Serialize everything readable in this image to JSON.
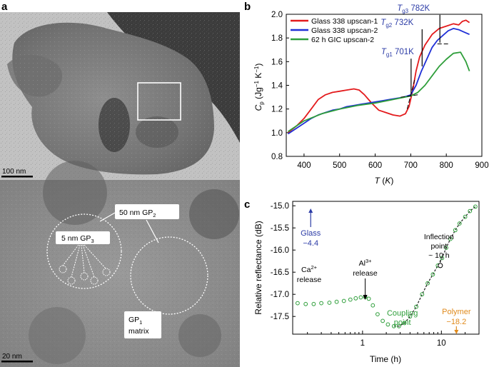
{
  "panels": {
    "a": "a",
    "b": "b",
    "c": "c"
  },
  "micrograph": {
    "scale_bar_top": "100 nm",
    "scale_bar_bottom": "20 nm",
    "label_gp2": "50 nm GP",
    "label_gp2_sub": "2",
    "label_gp3": "5 nm GP",
    "label_gp3_sub": "3",
    "label_gp1": "GP",
    "label_gp1_sub": "1",
    "label_matrix": "matrix"
  },
  "chart_data": [
    {
      "type": "line",
      "panel": "b",
      "xlabel": "T (K)",
      "ylabel": "Cp (Jg−1 K−1)",
      "xlim": [
        350,
        900
      ],
      "ylim": [
        0.8,
        2.0
      ],
      "xticks": [
        "400",
        "500",
        "600",
        "700",
        "800",
        "900"
      ],
      "yticks": [
        "0.8",
        "1.0",
        "1.2",
        "1.4",
        "1.6",
        "1.8",
        "2.0"
      ],
      "legend": [
        "Glass 338 upscan-1",
        "Glass 338 upscan-2",
        "62 h GIC upscan-2"
      ],
      "series": [
        {
          "name": "Glass 338 upscan-1",
          "color": "#e31a1c",
          "x": [
            355,
            380,
            400,
            420,
            440,
            460,
            480,
            500,
            520,
            540,
            555,
            570,
            590,
            610,
            630,
            650,
            670,
            685,
            695,
            705,
            715,
            725,
            740,
            760,
            780,
            800,
            820,
            835,
            845,
            855,
            865
          ],
          "y": [
            1.0,
            1.06,
            1.12,
            1.2,
            1.28,
            1.32,
            1.34,
            1.35,
            1.36,
            1.37,
            1.36,
            1.32,
            1.25,
            1.19,
            1.17,
            1.15,
            1.14,
            1.16,
            1.22,
            1.35,
            1.52,
            1.64,
            1.74,
            1.83,
            1.88,
            1.9,
            1.92,
            1.91,
            1.94,
            1.95,
            1.93
          ]
        },
        {
          "name": "Glass 338 upscan-2",
          "color": "#1f2fd6",
          "x": [
            355,
            380,
            400,
            420,
            440,
            460,
            480,
            500,
            520,
            540,
            560,
            580,
            600,
            620,
            640,
            660,
            680,
            700,
            715,
            730,
            745,
            760,
            775,
            790,
            805,
            820,
            835,
            850,
            865
          ],
          "y": [
            0.99,
            1.04,
            1.08,
            1.12,
            1.15,
            1.17,
            1.19,
            1.2,
            1.22,
            1.23,
            1.24,
            1.25,
            1.26,
            1.27,
            1.28,
            1.29,
            1.3,
            1.32,
            1.4,
            1.52,
            1.62,
            1.72,
            1.78,
            1.82,
            1.86,
            1.88,
            1.87,
            1.85,
            1.83
          ]
        },
        {
          "name": "62 h GIC upscan-2",
          "color": "#2e9e3a",
          "x": [
            355,
            400,
            450,
            500,
            550,
            600,
            650,
            700,
            720,
            740,
            760,
            780,
            800,
            820,
            840,
            855,
            865
          ],
          "y": [
            1.01,
            1.1,
            1.16,
            1.2,
            1.23,
            1.25,
            1.28,
            1.31,
            1.34,
            1.4,
            1.48,
            1.56,
            1.62,
            1.67,
            1.68,
            1.6,
            1.52
          ]
        }
      ],
      "annotations": [
        {
          "label": "T",
          "sub": "g1",
          "value": " 701K",
          "x": 701,
          "y": 1.33
        },
        {
          "label": "T",
          "sub": "g2",
          "value": " 732K",
          "x": 732,
          "y": 1.56
        },
        {
          "label": "T",
          "sub": "g3",
          "value": " 782K",
          "x": 782,
          "y": 1.76
        }
      ]
    },
    {
      "type": "scatter",
      "panel": "c",
      "xlabel": "Time (h)",
      "ylabel": "Relative reflectance (dB)",
      "xscale": "log",
      "xlim": [
        0.13,
        30
      ],
      "ylim": [
        -17.9,
        -14.9
      ],
      "xticks": [
        "1",
        "10"
      ],
      "yticks": [
        "-15.0",
        "-15.5",
        "-16.0",
        "-16.5",
        "-17.0",
        "-17.5"
      ],
      "series": [
        {
          "name": "Relative reflectance",
          "color": "#2e9e3a",
          "x": [
            0.15,
            0.19,
            0.24,
            0.3,
            0.38,
            0.47,
            0.58,
            0.7,
            0.82,
            0.95,
            1.08,
            1.2,
            1.35,
            1.55,
            1.8,
            2.1,
            2.5,
            2.9,
            3.4,
            4.0,
            4.8,
            5.7,
            6.7,
            7.8,
            9.0,
            10.2,
            11.5,
            13,
            15,
            17,
            20,
            23,
            27
          ],
          "y": [
            -17.2,
            -17.22,
            -17.22,
            -17.2,
            -17.19,
            -17.17,
            -17.15,
            -17.12,
            -17.09,
            -17.07,
            -17.06,
            -17.1,
            -17.25,
            -17.45,
            -17.6,
            -17.68,
            -17.72,
            -17.72,
            -17.65,
            -17.5,
            -17.28,
            -17.0,
            -16.75,
            -16.55,
            -16.35,
            -16.18,
            -15.95,
            -15.75,
            -15.55,
            -15.4,
            -15.25,
            -15.12,
            -15.02
          ]
        }
      ],
      "annotations": {
        "glass_label": "Glass",
        "glass_value": "−4.4",
        "polymer_label": "Polymer",
        "polymer_value": "−18.2",
        "ca_label": "Ca",
        "ca_sup": "2+",
        "ca_release": "release",
        "al_label": "Al",
        "al_sup": "3+",
        "al_release": "release",
        "coupling_1": "Coupling",
        "coupling_2": "point",
        "inflection_1": "Inflection",
        "inflection_2": "point",
        "inflection_3": "~ 10 h"
      }
    }
  ],
  "colors": {
    "red": "#e31a1c",
    "blue": "#1f2fd6",
    "green": "#2e9e3a",
    "glass_blue": "#2b3ba6",
    "polymer_orange": "#e08a1c"
  }
}
